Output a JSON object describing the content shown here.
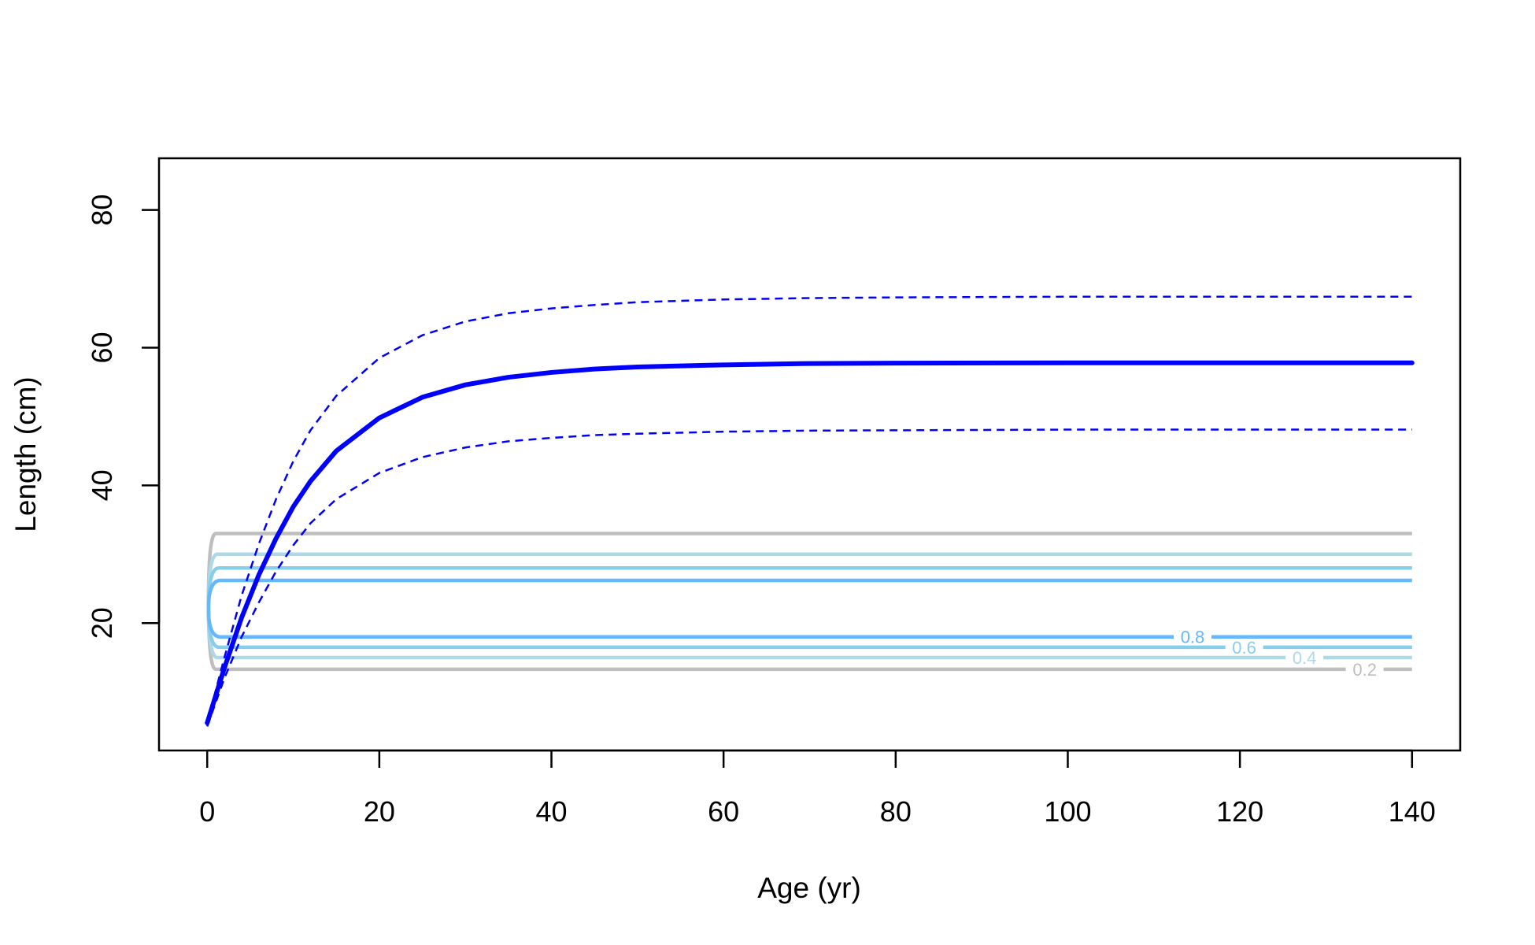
{
  "chart_data": {
    "type": "line",
    "title": "",
    "xlabel": "Age (yr)",
    "ylabel": "Length (cm)",
    "xlim": [
      -5.6,
      145.6
    ],
    "ylim": [
      1.5,
      87.5
    ],
    "xticks": [
      0,
      20,
      40,
      60,
      80,
      100,
      120,
      140
    ],
    "yticks": [
      20,
      40,
      60,
      80
    ],
    "xtick_labels": [
      "0",
      "20",
      "40",
      "60",
      "80",
      "100",
      "120",
      "140"
    ],
    "ytick_labels": [
      "20",
      "40",
      "60",
      "80"
    ],
    "grid": false,
    "legend": "none",
    "series": [
      {
        "role": "growth-mean",
        "style": "solid",
        "color": "#0000ff",
        "x": [
          0,
          2,
          4,
          6,
          8,
          10,
          12,
          15,
          20,
          25,
          30,
          35,
          40,
          45,
          50,
          60,
          70,
          80,
          100,
          120,
          140
        ],
        "y": [
          5.5,
          13.5,
          20.8,
          27,
          32.3,
          36.9,
          40.6,
          45,
          49.8,
          52.8,
          54.6,
          55.7,
          56.4,
          56.9,
          57.2,
          57.5,
          57.7,
          57.75,
          57.8,
          57.8,
          57.8
        ]
      },
      {
        "role": "growth-upper",
        "style": "dashed",
        "color": "#0000ff",
        "x": [
          0,
          2,
          4,
          6,
          8,
          10,
          12,
          15,
          20,
          25,
          30,
          35,
          40,
          45,
          50,
          60,
          70,
          80,
          100,
          120,
          140
        ],
        "y": [
          5.5,
          15,
          24,
          31.5,
          38,
          43.5,
          48,
          53,
          58.5,
          61.8,
          63.8,
          65,
          65.7,
          66.2,
          66.6,
          67,
          67.2,
          67.3,
          67.4,
          67.4,
          67.4
        ]
      },
      {
        "role": "growth-lower",
        "style": "dashed",
        "color": "#0000ff",
        "x": [
          0,
          2,
          4,
          6,
          8,
          10,
          12,
          15,
          20,
          25,
          30,
          35,
          40,
          45,
          50,
          60,
          70,
          80,
          100,
          120,
          140
        ],
        "y": [
          5,
          12,
          18,
          23,
          27.5,
          31.3,
          34.5,
          38,
          41.8,
          44.1,
          45.5,
          46.4,
          46.9,
          47.3,
          47.5,
          47.8,
          47.95,
          48,
          48.1,
          48.1,
          48.1
        ]
      }
    ],
    "contours": [
      {
        "level": "0.2",
        "color": "#bebebe",
        "y_upper": 33,
        "y_lower": 13.3
      },
      {
        "level": "0.4",
        "color": "#add8e6",
        "y_upper": 30,
        "y_lower": 15
      },
      {
        "level": "0.6",
        "color": "#87ceeb",
        "y_upper": 28,
        "y_lower": 16.5
      },
      {
        "level": "0.8",
        "color": "#63b8ff",
        "y_upper": 26.2,
        "y_lower": 18
      }
    ]
  }
}
